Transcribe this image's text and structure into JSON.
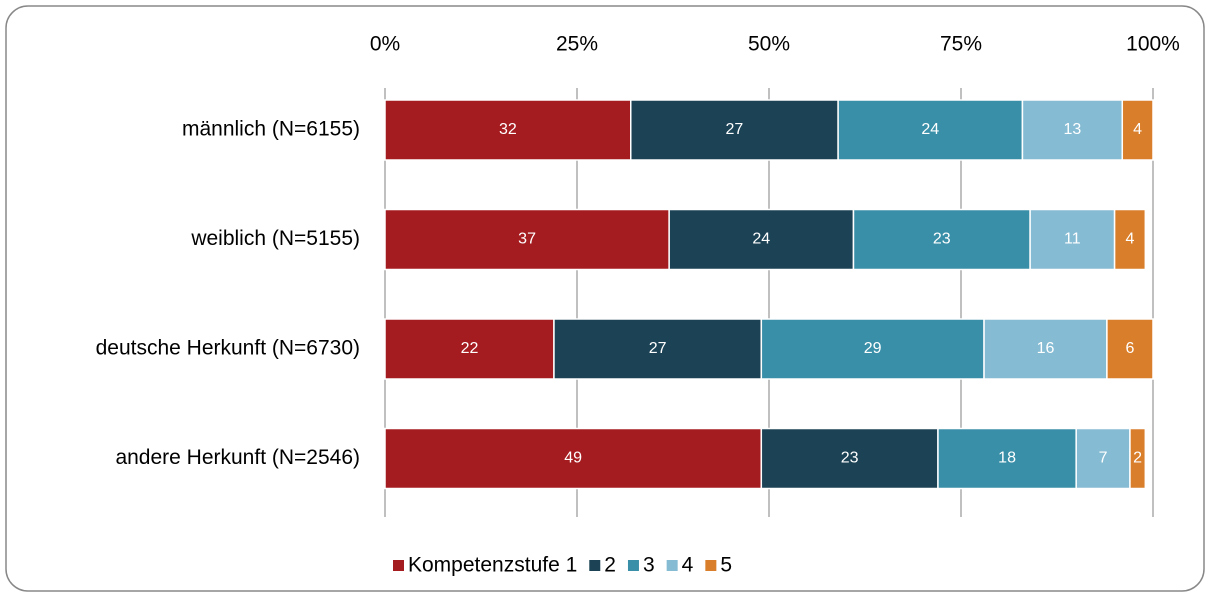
{
  "chart_data": {
    "type": "stacked-bar-horizontal",
    "categories": [
      "männlich (N=6155)",
      "weiblich (N=5155)",
      "deutsche Herkunft (N=6730)",
      "andere Herkunft (N=2546)"
    ],
    "series": [
      {
        "name": "Kompetenzstufe 1",
        "color": "#a51c20",
        "values": [
          32,
          37,
          22,
          49
        ]
      },
      {
        "name": "2",
        "color": "#1b4255",
        "values": [
          27,
          24,
          27,
          23
        ]
      },
      {
        "name": "3",
        "color": "#3a8fa8",
        "values": [
          24,
          23,
          29,
          18
        ]
      },
      {
        "name": "4",
        "color": "#85bbd3",
        "values": [
          13,
          11,
          16,
          7
        ]
      },
      {
        "name": "5",
        "color": "#d97e2a",
        "values": [
          4,
          4,
          6,
          2
        ]
      }
    ],
    "xlim": [
      0,
      100
    ],
    "xticks": [
      {
        "value": 0,
        "label": "0%"
      },
      {
        "value": 25,
        "label": "25%"
      },
      {
        "value": 50,
        "label": "50%"
      },
      {
        "value": 75,
        "label": "75%"
      },
      {
        "value": 100,
        "label": "100%"
      }
    ],
    "grid": true,
    "legend": "bottom"
  }
}
